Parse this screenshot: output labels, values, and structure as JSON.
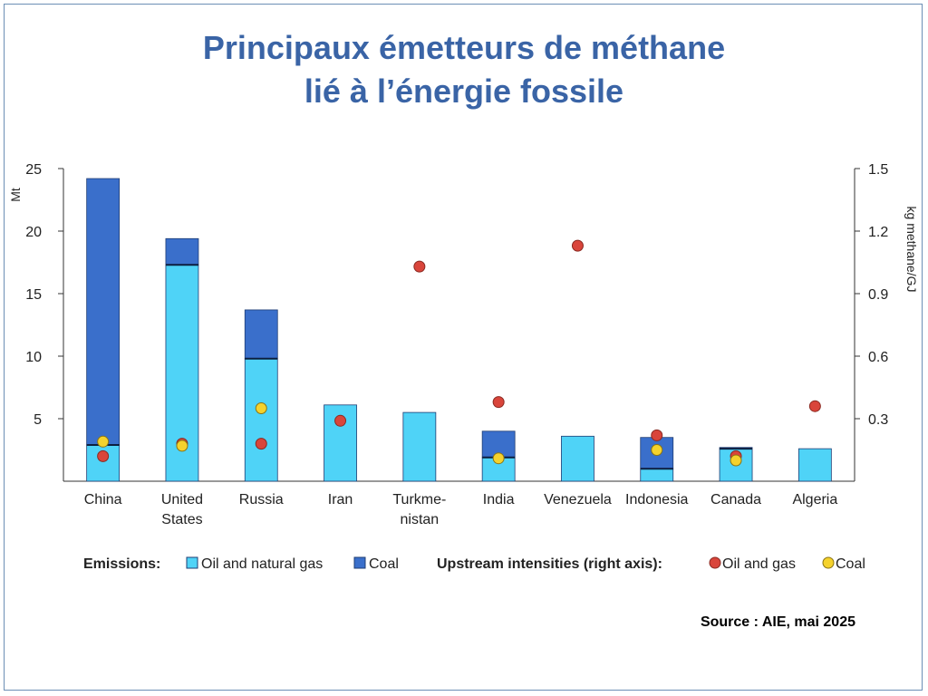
{
  "title_line1": "Principaux émetteurs de méthane",
  "title_line2": "lié à l’énergie fossile",
  "source": "Source : AIE, mai 2025",
  "legend": {
    "emissions_label": "Emissions:",
    "oil_gas_label": "Oil and natural gas",
    "coal_label": "Coal",
    "intensities_label": "Upstream intensities (right axis):",
    "int_oil_gas_label": "Oil and gas",
    "int_coal_label": "Coal"
  },
  "colors": {
    "oil_gas_bar": "#4fd3f7",
    "coal_bar": "#3a6fcb",
    "bar_outline": "#1f3d73",
    "int_oil_gas": "#d9453b",
    "int_coal": "#f5d22c",
    "title": "#3a64a6"
  },
  "chart_data": {
    "type": "bar",
    "stacked": true,
    "categories": [
      "China",
      "United\nStates",
      "Russia",
      "Iran",
      "Turkme-\nnistan",
      "India",
      "Venezuela",
      "Indonesia",
      "Canada",
      "Algeria"
    ],
    "ylabel": "Mt",
    "y2label": "kg methane/GJ",
    "ylim": [
      0,
      25
    ],
    "y2lim": [
      0,
      1.5
    ],
    "yticks": [
      "5",
      "10",
      "15",
      "20",
      "25"
    ],
    "y2ticks": [
      "0.3",
      "0.6",
      "0.9",
      "1.2",
      "1.5"
    ],
    "series": [
      {
        "name": "Oil and natural gas",
        "axis": "left",
        "values": [
          2.9,
          17.3,
          9.8,
          6.1,
          5.5,
          1.9,
          3.6,
          1.0,
          2.6,
          2.6
        ]
      },
      {
        "name": "Coal",
        "axis": "left",
        "values": [
          21.3,
          2.1,
          3.9,
          0,
          0,
          2.1,
          0,
          2.5,
          0.1,
          0
        ]
      },
      {
        "name": "Oil and gas",
        "axis": "right",
        "kind": "scatter",
        "values": [
          0.12,
          0.18,
          0.18,
          0.29,
          1.03,
          0.38,
          1.13,
          0.22,
          0.12,
          0.36
        ]
      },
      {
        "name": "Coal",
        "axis": "right",
        "kind": "scatter",
        "values": [
          0.19,
          0.17,
          0.35,
          null,
          null,
          0.11,
          null,
          0.15,
          0.1,
          null
        ]
      }
    ],
    "grid": false,
    "legend_position": "bottom"
  }
}
